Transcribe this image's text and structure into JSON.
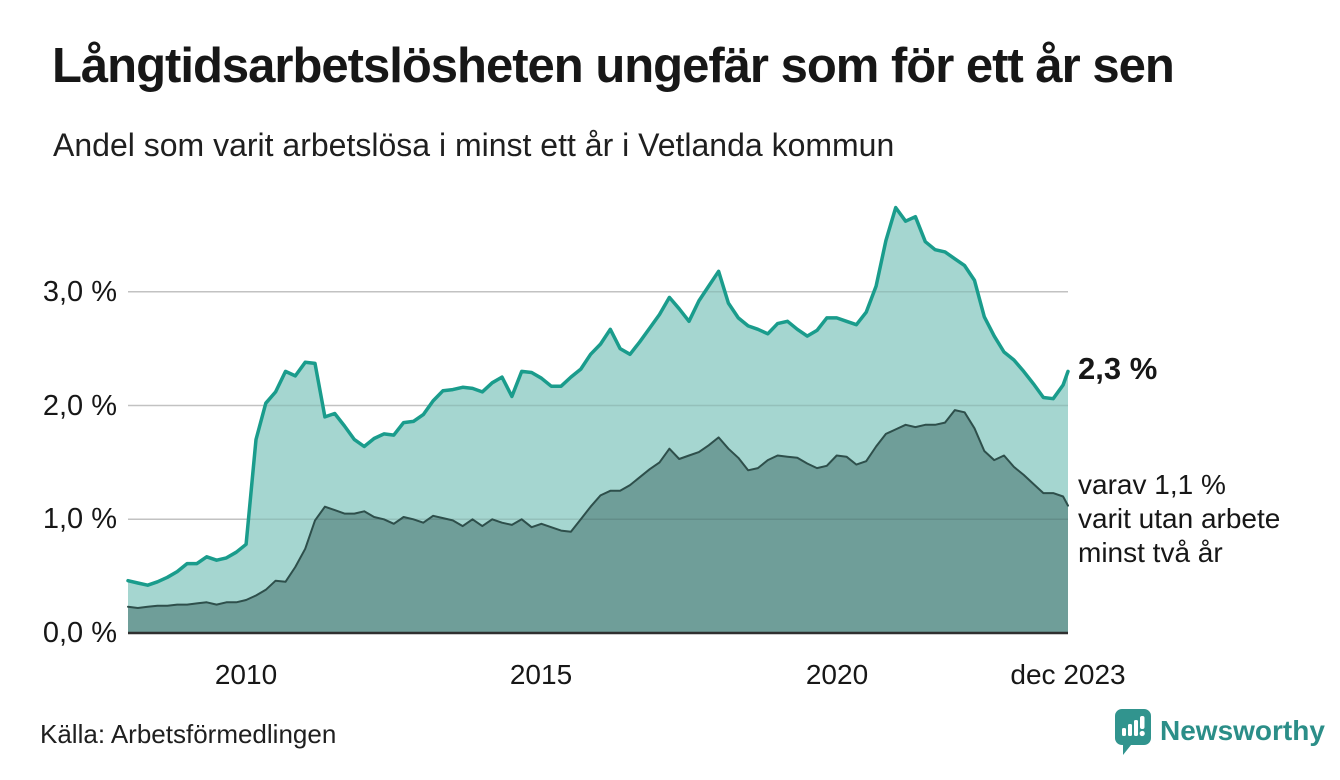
{
  "header": {
    "title": "Långtidsarbetslösheten ungefär som för ett år sen",
    "subtitle": "Andel som varit arbetslösa i minst ett år i Vetlanda kommun"
  },
  "annotations": {
    "latest_total": "2,3 %",
    "latest_two_plus_lines": [
      "varav 1,1 %",
      "varit utan arbete",
      "minst två år"
    ]
  },
  "footer": {
    "source": "Källa: Arbetsförmedlingen",
    "brand": "Newsworthy"
  },
  "colors": {
    "accent_teal": "#1a9c8c",
    "fill_light": "#a5d6d0",
    "fill_dark": "#6f9e99",
    "line_dark": "#2e4f4b",
    "gridline": "#d9d9d9",
    "baseline": "#2f2f2f",
    "brand_teal": "#2b8e88"
  },
  "chart_data": {
    "type": "area",
    "title": "Andel som varit arbetslösa i minst ett år i Vetlanda kommun",
    "x_unit": "months since 2008-01",
    "x_max_month": 191,
    "interval_months": 2,
    "ylim": [
      0,
      4
    ],
    "grid": true,
    "legend_position": "none",
    "y_gridlines": [
      1,
      2,
      3
    ],
    "y_tick_labels": [
      {
        "value": 0,
        "label": "0,0 %"
      },
      {
        "value": 1,
        "label": "1,0 %"
      },
      {
        "value": 2,
        "label": "2,0 %"
      },
      {
        "value": 3,
        "label": "3,0 %"
      }
    ],
    "x_ticks": [
      {
        "month": 24,
        "label": "2010"
      },
      {
        "month": 84,
        "label": "2015"
      },
      {
        "month": 144,
        "label": "2020"
      },
      {
        "month": 191,
        "label": "dec 2023"
      }
    ],
    "series": [
      {
        "name": "Arbetslösa minst ett år",
        "line_color": "#1a9c8c",
        "fill_color": "#a5d6d0",
        "last_value_label": "2,3 %",
        "values": [
          0.46,
          0.44,
          0.42,
          0.45,
          0.49,
          0.54,
          0.61,
          0.61,
          0.67,
          0.64,
          0.66,
          0.71,
          0.78,
          1.7,
          2.02,
          2.12,
          2.3,
          2.26,
          2.38,
          2.37,
          1.9,
          1.93,
          1.82,
          1.7,
          1.64,
          1.71,
          1.75,
          1.74,
          1.85,
          1.86,
          1.92,
          2.04,
          2.13,
          2.14,
          2.16,
          2.15,
          2.12,
          2.2,
          2.25,
          2.08,
          2.3,
          2.29,
          2.24,
          2.17,
          2.17,
          2.25,
          2.32,
          2.45,
          2.54,
          2.67,
          2.5,
          2.45,
          2.56,
          2.68,
          2.8,
          2.95,
          2.85,
          2.74,
          2.92,
          3.05,
          3.18,
          2.9,
          2.77,
          2.7,
          2.67,
          2.63,
          2.72,
          2.74,
          2.67,
          2.61,
          2.66,
          2.77,
          2.77,
          2.74,
          2.71,
          2.82,
          3.05,
          3.45,
          3.74,
          3.62,
          3.66,
          3.44,
          3.37,
          3.35,
          3.29,
          3.23,
          3.1,
          2.78,
          2.61,
          2.47,
          2.4,
          2.3,
          2.19,
          2.07,
          2.06,
          2.18,
          2.3
        ]
      },
      {
        "name": "varav arbetslösa minst två år",
        "line_color": "#2e4f4b",
        "fill_color": "#6f9e99",
        "last_value_label": "1,1 %",
        "values": [
          0.23,
          0.22,
          0.23,
          0.24,
          0.24,
          0.25,
          0.25,
          0.26,
          0.27,
          0.25,
          0.27,
          0.27,
          0.29,
          0.33,
          0.38,
          0.46,
          0.45,
          0.58,
          0.74,
          0.99,
          1.11,
          1.08,
          1.05,
          1.05,
          1.07,
          1.02,
          1.0,
          0.96,
          1.02,
          1.0,
          0.97,
          1.03,
          1.01,
          0.99,
          0.94,
          1.0,
          0.94,
          1.0,
          0.97,
          0.95,
          1.0,
          0.93,
          0.96,
          0.93,
          0.9,
          0.89,
          1.0,
          1.11,
          1.21,
          1.25,
          1.25,
          1.3,
          1.37,
          1.44,
          1.5,
          1.62,
          1.53,
          1.56,
          1.59,
          1.65,
          1.72,
          1.62,
          1.54,
          1.43,
          1.45,
          1.52,
          1.56,
          1.55,
          1.54,
          1.49,
          1.45,
          1.47,
          1.56,
          1.55,
          1.48,
          1.51,
          1.64,
          1.75,
          1.79,
          1.83,
          1.81,
          1.83,
          1.83,
          1.85,
          1.96,
          1.94,
          1.8,
          1.6,
          1.52,
          1.56,
          1.46,
          1.39,
          1.31,
          1.23,
          1.23,
          1.2,
          1.12
        ]
      }
    ]
  }
}
